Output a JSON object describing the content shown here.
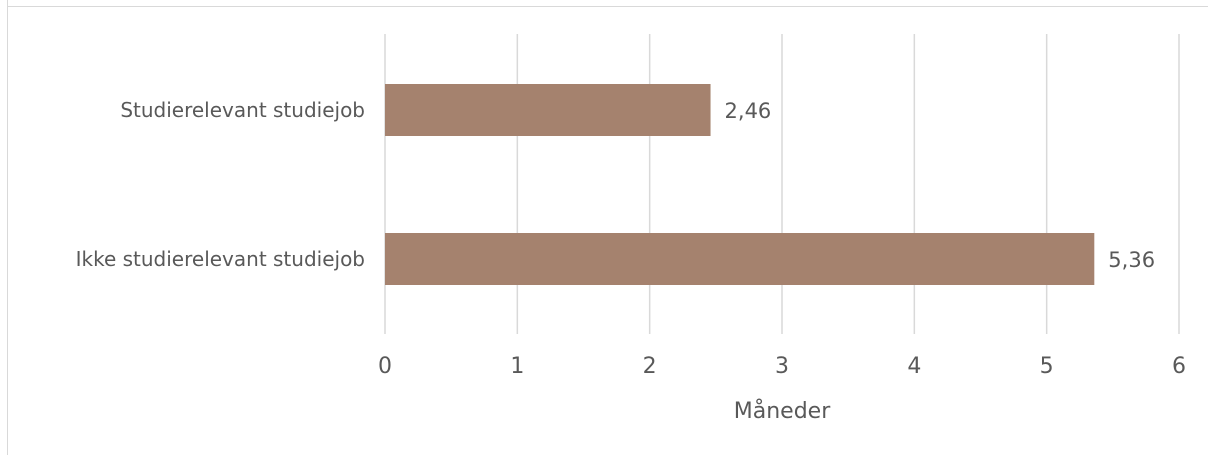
{
  "chart_data": {
    "type": "bar",
    "orientation": "horizontal",
    "categories": [
      "Studierelevant studiejob",
      "Ikke studierelevant studiejob"
    ],
    "values": [
      2.46,
      5.36
    ],
    "data_labels": [
      "2,46",
      "5,36"
    ],
    "xlabel": "Måneder",
    "xlim": [
      0,
      6
    ],
    "x_ticks": [
      "0",
      "1",
      "2",
      "3",
      "4",
      "5",
      "6"
    ],
    "grid": "vertical",
    "bar_color": "#a5826e",
    "grid_color": "#d9d9d9"
  }
}
